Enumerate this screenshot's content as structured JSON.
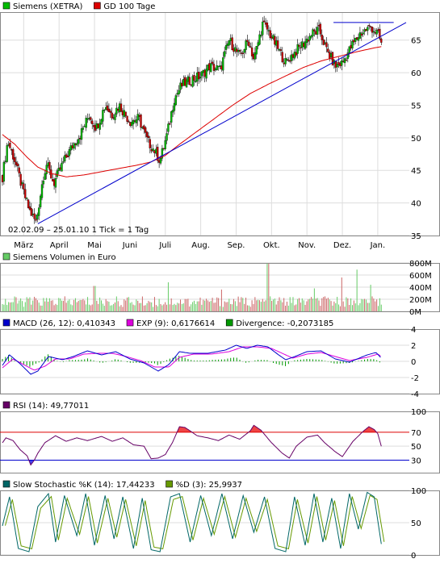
{
  "colors": {
    "price_up": "#00bb00",
    "price_down": "#cc0000",
    "ma": "#dd0000",
    "trend": "#0000cc",
    "volume_up": "#66cc66",
    "volume_down": "#cc6666",
    "macd": "#0000cc",
    "exp": "#dd00dd",
    "divergence": "#009900",
    "rsi": "#660066",
    "rsi_over": "#ee4444",
    "rsi_under": "#4444ee",
    "stoch_k": "#006666",
    "stoch_d": "#669900",
    "grid": "#dddddd"
  },
  "chart_data": [
    {
      "type": "candlestick",
      "panel": "price",
      "legend": [
        {
          "label": "Siemens (XETRA)",
          "color_key": "price_up"
        },
        {
          "label": "GD 100 Tage",
          "color_key": "ma"
        }
      ],
      "info_text": "02.02.09 – 25.01.10   1 Tick = 1 Tag",
      "x_labels": [
        "März",
        "April",
        "Mai",
        "Juni",
        "Juli",
        "Aug.",
        "Sep.",
        "Okt.",
        "Nov.",
        "Dez.",
        "Jan."
      ],
      "x_label_month_pos": [
        0.6,
        1.6,
        2.6,
        3.6,
        4.6,
        5.6,
        6.6,
        7.6,
        8.6,
        9.6,
        10.6
      ],
      "y_ticks": [
        35,
        40,
        45,
        50,
        55,
        60,
        65
      ],
      "ylim": [
        35,
        69.3
      ],
      "price_path": [
        [
          0.0,
          44.0
        ],
        [
          0.15,
          49.5
        ],
        [
          0.35,
          46.5
        ],
        [
          0.55,
          42.5
        ],
        [
          0.75,
          39.0
        ],
        [
          0.95,
          37.0
        ],
        [
          1.15,
          44.0
        ],
        [
          1.25,
          46.0
        ],
        [
          1.45,
          43.0
        ],
        [
          1.7,
          46.0
        ],
        [
          2.0,
          49.0
        ],
        [
          2.2,
          50.5
        ],
        [
          2.45,
          53.5
        ],
        [
          2.65,
          51.5
        ],
        [
          2.9,
          55.0
        ],
        [
          3.1,
          53.5
        ],
        [
          3.3,
          55.0
        ],
        [
          3.6,
          52.5
        ],
        [
          3.85,
          53.0
        ],
        [
          4.1,
          49.5
        ],
        [
          4.3,
          48.0
        ],
        [
          4.45,
          46.5
        ],
        [
          4.65,
          50.5
        ],
        [
          4.85,
          56.0
        ],
        [
          5.05,
          58.0
        ],
        [
          5.35,
          59.0
        ],
        [
          5.6,
          59.5
        ],
        [
          5.85,
          61.0
        ],
        [
          6.15,
          60.5
        ],
        [
          6.4,
          65.0
        ],
        [
          6.7,
          62.5
        ],
        [
          6.95,
          65.0
        ],
        [
          7.1,
          62.0
        ],
        [
          7.35,
          67.5
        ],
        [
          7.5,
          66.5
        ],
        [
          7.75,
          64.0
        ],
        [
          8.0,
          61.5
        ],
        [
          8.15,
          62.5
        ],
        [
          8.5,
          64.5
        ],
        [
          8.75,
          66.0
        ],
        [
          8.95,
          66.5
        ],
        [
          9.15,
          63.5
        ],
        [
          9.4,
          61.0
        ],
        [
          9.6,
          61.5
        ],
        [
          9.85,
          64.0
        ],
        [
          10.1,
          66.0
        ],
        [
          10.4,
          67.0
        ],
        [
          10.6,
          66.0
        ],
        [
          10.7,
          64.5
        ]
      ],
      "ma_path": [
        [
          0.0,
          50.5
        ],
        [
          0.35,
          49.0
        ],
        [
          0.7,
          47.0
        ],
        [
          1.0,
          45.5
        ],
        [
          1.4,
          44.5
        ],
        [
          1.8,
          44.0
        ],
        [
          2.3,
          44.3
        ],
        [
          2.8,
          44.8
        ],
        [
          3.3,
          45.3
        ],
        [
          3.8,
          45.8
        ],
        [
          4.2,
          46.3
        ],
        [
          4.6,
          47.3
        ],
        [
          5.0,
          49.0
        ],
        [
          5.5,
          51.0
        ],
        [
          6.0,
          53.0
        ],
        [
          6.5,
          55.0
        ],
        [
          7.0,
          56.8
        ],
        [
          7.5,
          58.2
        ],
        [
          8.0,
          59.5
        ],
        [
          8.5,
          60.8
        ],
        [
          9.0,
          61.8
        ],
        [
          9.5,
          62.5
        ],
        [
          10.0,
          63.2
        ],
        [
          10.5,
          63.8
        ],
        [
          10.7,
          64.0
        ]
      ],
      "trend_lines": [
        {
          "from": [
            1.0,
            36.8
          ],
          "to": [
            11.4,
            67.7
          ]
        },
        {
          "from": [
            9.35,
            67.7
          ],
          "to": [
            11.05,
            67.7
          ]
        }
      ]
    },
    {
      "type": "bar",
      "panel": "volume",
      "legend": [
        {
          "label": "Siemens Volumen in Euro",
          "color_key": "volume_up"
        }
      ],
      "y_ticks": [
        0,
        200,
        400,
        600,
        800
      ],
      "y_tick_labels": [
        "0M",
        "200M",
        "400M",
        "600M",
        "800M"
      ],
      "ylim": [
        0,
        800
      ],
      "typical_value": 160,
      "spikes": [
        [
          4.7,
          480
        ],
        [
          7.5,
          790
        ],
        [
          9.6,
          560
        ],
        [
          10.0,
          690
        ],
        [
          10.4,
          440
        ],
        [
          2.6,
          420
        ],
        [
          6.2,
          360
        ],
        [
          8.8,
          380
        ]
      ]
    },
    {
      "type": "line",
      "panel": "macd",
      "legend": [
        {
          "label": "MACD (26, 12): 0,410343",
          "color_key": "macd"
        },
        {
          "label": "EXP (9): 0,6176614",
          "color_key": "exp"
        },
        {
          "label": "Divergence: -0,2073185",
          "color_key": "divergence"
        }
      ],
      "y_ticks": [
        -4,
        -2,
        0,
        2,
        4
      ],
      "ylim": [
        -4,
        4
      ],
      "macd_path": [
        [
          0.0,
          -0.5
        ],
        [
          0.2,
          0.8
        ],
        [
          0.5,
          -0.3
        ],
        [
          0.8,
          -1.6
        ],
        [
          1.0,
          -1.2
        ],
        [
          1.3,
          0.6
        ],
        [
          1.7,
          0.2
        ],
        [
          2.0,
          0.6
        ],
        [
          2.4,
          1.3
        ],
        [
          2.8,
          0.8
        ],
        [
          3.2,
          1.2
        ],
        [
          3.6,
          0.3
        ],
        [
          4.0,
          -0.2
        ],
        [
          4.4,
          -1.2
        ],
        [
          4.7,
          -0.4
        ],
        [
          5.0,
          1.2
        ],
        [
          5.3,
          1.0
        ],
        [
          5.8,
          1.0
        ],
        [
          6.3,
          1.4
        ],
        [
          6.6,
          2.0
        ],
        [
          6.9,
          1.6
        ],
        [
          7.2,
          2.0
        ],
        [
          7.5,
          1.8
        ],
        [
          7.8,
          0.8
        ],
        [
          8.0,
          0.2
        ],
        [
          8.2,
          0.5
        ],
        [
          8.6,
          1.2
        ],
        [
          9.0,
          1.3
        ],
        [
          9.4,
          0.3
        ],
        [
          9.8,
          -0.1
        ],
        [
          10.3,
          0.8
        ],
        [
          10.55,
          1.1
        ],
        [
          10.7,
          0.4
        ]
      ],
      "exp_path": [
        [
          0.0,
          -0.8
        ],
        [
          0.3,
          0.3
        ],
        [
          0.6,
          -0.4
        ],
        [
          0.9,
          -1.1
        ],
        [
          1.2,
          -0.6
        ],
        [
          1.5,
          0.3
        ],
        [
          1.9,
          0.3
        ],
        [
          2.3,
          0.9
        ],
        [
          2.7,
          1.0
        ],
        [
          3.1,
          1.0
        ],
        [
          3.5,
          0.6
        ],
        [
          3.9,
          0.1
        ],
        [
          4.3,
          -0.7
        ],
        [
          4.7,
          -0.7
        ],
        [
          5.0,
          0.5
        ],
        [
          5.4,
          0.9
        ],
        [
          5.9,
          0.9
        ],
        [
          6.4,
          1.2
        ],
        [
          6.8,
          1.8
        ],
        [
          7.2,
          1.8
        ],
        [
          7.6,
          1.6
        ],
        [
          7.9,
          1.0
        ],
        [
          8.2,
          0.4
        ],
        [
          8.6,
          0.9
        ],
        [
          9.0,
          1.1
        ],
        [
          9.4,
          0.6
        ],
        [
          9.8,
          0.1
        ],
        [
          10.3,
          0.5
        ],
        [
          10.6,
          0.9
        ],
        [
          10.7,
          0.6
        ]
      ]
    },
    {
      "type": "line",
      "panel": "rsi",
      "legend": [
        {
          "label": "RSI (14): 49,77011",
          "color_key": "rsi"
        }
      ],
      "y_ticks": [
        30,
        50,
        70,
        100
      ],
      "ylim": [
        12,
        100
      ],
      "overbought": 70,
      "oversold": 30,
      "rsi_path": [
        [
          0.0,
          55.0
        ],
        [
          0.1,
          62.0
        ],
        [
          0.3,
          58.0
        ],
        [
          0.5,
          45.0
        ],
        [
          0.7,
          36.0
        ],
        [
          0.8,
          23.0
        ],
        [
          0.9,
          30.0
        ],
        [
          1.0,
          40.0
        ],
        [
          1.2,
          55.0
        ],
        [
          1.5,
          65.0
        ],
        [
          1.8,
          57.0
        ],
        [
          2.1,
          62.0
        ],
        [
          2.4,
          58.0
        ],
        [
          2.8,
          64.0
        ],
        [
          3.1,
          57.0
        ],
        [
          3.4,
          62.0
        ],
        [
          3.7,
          52.0
        ],
        [
          4.0,
          50.0
        ],
        [
          4.2,
          32.0
        ],
        [
          4.4,
          33.0
        ],
        [
          4.6,
          38.0
        ],
        [
          4.8,
          55.0
        ],
        [
          5.0,
          78.0
        ],
        [
          5.15,
          77.0
        ],
        [
          5.3,
          72.0
        ],
        [
          5.5,
          65.0
        ],
        [
          5.8,
          62.0
        ],
        [
          6.1,
          58.0
        ],
        [
          6.4,
          66.0
        ],
        [
          6.7,
          60.0
        ],
        [
          7.0,
          72.0
        ],
        [
          7.1,
          80.0
        ],
        [
          7.3,
          73.0
        ],
        [
          7.6,
          55.0
        ],
        [
          7.9,
          40.0
        ],
        [
          8.1,
          33.0
        ],
        [
          8.3,
          50.0
        ],
        [
          8.6,
          63.0
        ],
        [
          8.9,
          66.0
        ],
        [
          9.1,
          55.0
        ],
        [
          9.4,
          42.0
        ],
        [
          9.6,
          35.0
        ],
        [
          9.9,
          57.0
        ],
        [
          10.2,
          72.0
        ],
        [
          10.35,
          78.0
        ],
        [
          10.5,
          74.0
        ],
        [
          10.6,
          68.0
        ],
        [
          10.7,
          50.0
        ]
      ]
    },
    {
      "type": "line",
      "panel": "stochastic",
      "legend": [
        {
          "label": "Slow Stochastic %K (14): 17,44233",
          "color_key": "stoch_k"
        },
        {
          "label": "%D (3): 25,9937",
          "color_key": "stoch_d"
        }
      ],
      "y_ticks": [
        0,
        50,
        100
      ],
      "ylim": [
        0,
        100
      ],
      "k_path": [
        [
          0.0,
          45.0
        ],
        [
          0.2,
          90.0
        ],
        [
          0.45,
          10.0
        ],
        [
          0.75,
          5.0
        ],
        [
          1.0,
          75.0
        ],
        [
          1.3,
          95.0
        ],
        [
          1.5,
          20.0
        ],
        [
          1.75,
          92.0
        ],
        [
          2.1,
          30.0
        ],
        [
          2.35,
          95.0
        ],
        [
          2.6,
          15.0
        ],
        [
          2.9,
          92.0
        ],
        [
          3.15,
          25.0
        ],
        [
          3.4,
          90.0
        ],
        [
          3.7,
          10.0
        ],
        [
          3.95,
          88.0
        ],
        [
          4.2,
          8.0
        ],
        [
          4.45,
          5.0
        ],
        [
          4.75,
          90.0
        ],
        [
          5.0,
          95.0
        ],
        [
          5.3,
          20.0
        ],
        [
          5.6,
          92.0
        ],
        [
          5.9,
          30.0
        ],
        [
          6.2,
          95.0
        ],
        [
          6.5,
          25.0
        ],
        [
          6.8,
          92.0
        ],
        [
          7.1,
          35.0
        ],
        [
          7.4,
          90.0
        ],
        [
          7.7,
          10.0
        ],
        [
          8.0,
          5.0
        ],
        [
          8.25,
          90.0
        ],
        [
          8.55,
          15.0
        ],
        [
          8.8,
          95.0
        ],
        [
          9.05,
          20.0
        ],
        [
          9.3,
          88.0
        ],
        [
          9.55,
          10.0
        ],
        [
          9.8,
          95.0
        ],
        [
          10.05,
          40.0
        ],
        [
          10.3,
          97.0
        ],
        [
          10.5,
          90.0
        ],
        [
          10.7,
          17.0
        ]
      ]
    }
  ]
}
